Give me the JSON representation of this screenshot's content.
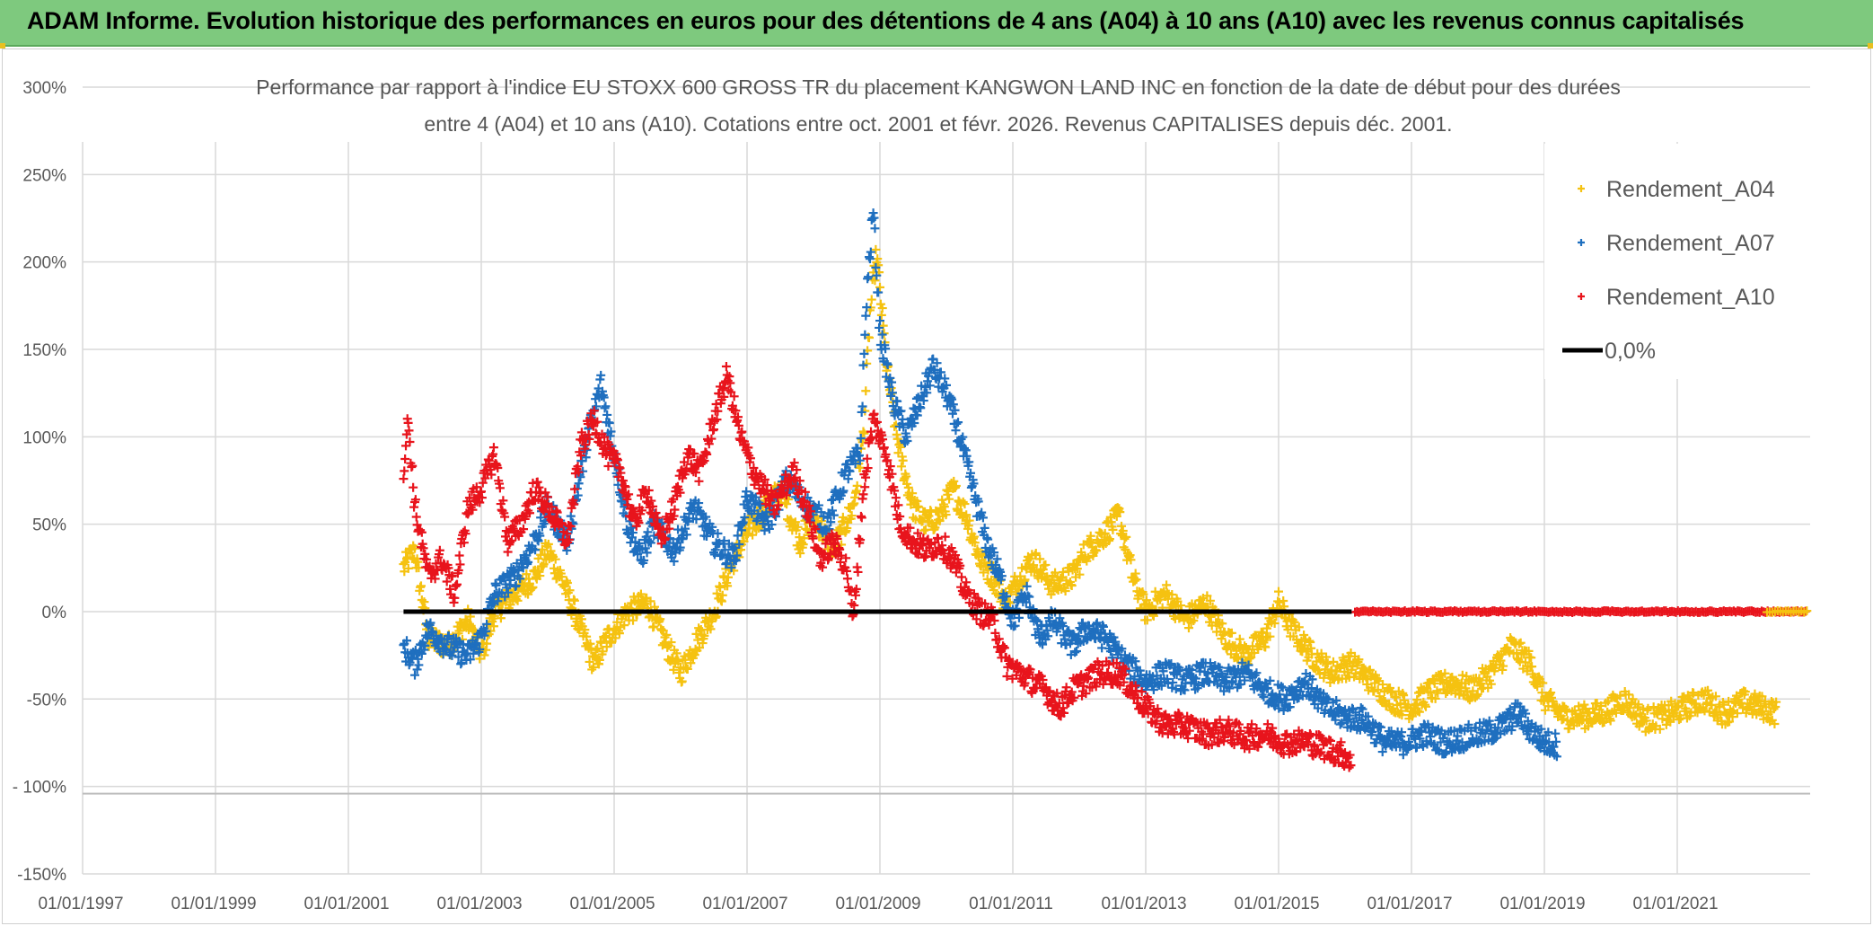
{
  "header": {
    "title": "ADAM Informe. Evolution historique des performances en euros pour des détentions de 4 ans (A04) à 10 ans (A10) avec les revenus connus capitalisés"
  },
  "colors": {
    "A04": "#f5c211",
    "A07": "#1f6fbf",
    "A10": "#e8141c",
    "zero": "#000000",
    "grid": "#d9d9d9"
  },
  "chart_data": {
    "type": "scatter",
    "title_lines": [
      "Performance par rapport à l'indice EU STOXX 600 GROSS TR  du placement KANGWON LAND INC en fonction de la date de début pour des durées",
      "entre 4 (A04) et 10 ans (A10). Cotations entre oct. 2001 et févr. 2026. Revenus CAPITALISES depuis déc. 2001."
    ],
    "x_tick_labels": [
      "01/01/1997",
      "01/01/1999",
      "01/01/2001",
      "01/01/2003",
      "01/01/2005",
      "01/01/2007",
      "01/01/2009",
      "01/01/2011",
      "01/01/2013",
      "01/01/2015",
      "01/01/2017",
      "01/01/2019",
      "01/01/2021"
    ],
    "y_tick_labels": [
      "300%",
      "250%",
      "200%",
      "150%",
      "100%",
      "50%",
      "0%",
      "-50%",
      "- 100%",
      "-150%"
    ],
    "x_range": [
      1997.0,
      2023.0
    ],
    "y_range": [
      -150,
      300
    ],
    "legend_position": "top-right",
    "series": [
      {
        "name": "Rendement_A04",
        "color_key": "A04",
        "points": [
          [
            2001.83,
            25
          ],
          [
            2002.0,
            35
          ],
          [
            2002.2,
            -15
          ],
          [
            2002.5,
            -20
          ],
          [
            2002.8,
            -5
          ],
          [
            2003.0,
            -25
          ],
          [
            2003.2,
            0
          ],
          [
            2003.5,
            10
          ],
          [
            2003.8,
            20
          ],
          [
            2004.0,
            35
          ],
          [
            2004.2,
            20
          ],
          [
            2004.5,
            -10
          ],
          [
            2004.7,
            -30
          ],
          [
            2004.9,
            -15
          ],
          [
            2005.2,
            0
          ],
          [
            2005.5,
            5
          ],
          [
            2005.8,
            -20
          ],
          [
            2006.0,
            -35
          ],
          [
            2006.2,
            -20
          ],
          [
            2006.5,
            0
          ],
          [
            2006.8,
            30
          ],
          [
            2007.0,
            45
          ],
          [
            2007.2,
            55
          ],
          [
            2007.5,
            70
          ],
          [
            2007.8,
            40
          ],
          [
            2008.0,
            55
          ],
          [
            2008.3,
            35
          ],
          [
            2008.6,
            60
          ],
          [
            2008.75,
            100
          ],
          [
            2008.85,
            170
          ],
          [
            2008.95,
            205
          ],
          [
            2009.1,
            140
          ],
          [
            2009.3,
            90
          ],
          [
            2009.5,
            60
          ],
          [
            2009.7,
            50
          ],
          [
            2009.9,
            55
          ],
          [
            2010.1,
            70
          ],
          [
            2010.3,
            55
          ],
          [
            2010.5,
            30
          ],
          [
            2010.7,
            20
          ],
          [
            2010.9,
            5
          ],
          [
            2011.1,
            20
          ],
          [
            2011.3,
            30
          ],
          [
            2011.6,
            15
          ],
          [
            2011.9,
            20
          ],
          [
            2012.1,
            35
          ],
          [
            2012.4,
            45
          ],
          [
            2012.6,
            55
          ],
          [
            2012.8,
            20
          ],
          [
            2013.0,
            0
          ],
          [
            2013.3,
            10
          ],
          [
            2013.6,
            -5
          ],
          [
            2013.9,
            5
          ],
          [
            2014.2,
            -15
          ],
          [
            2014.5,
            -25
          ],
          [
            2014.8,
            -15
          ],
          [
            2015.0,
            5
          ],
          [
            2015.2,
            -10
          ],
          [
            2015.5,
            -25
          ],
          [
            2015.8,
            -35
          ],
          [
            2016.1,
            -30
          ],
          [
            2016.4,
            -40
          ],
          [
            2016.7,
            -50
          ],
          [
            2017.0,
            -55
          ],
          [
            2017.3,
            -45
          ],
          [
            2017.6,
            -40
          ],
          [
            2017.9,
            -45
          ],
          [
            2018.2,
            -35
          ],
          [
            2018.5,
            -20
          ],
          [
            2018.8,
            -30
          ],
          [
            2019.0,
            -50
          ],
          [
            2019.3,
            -60
          ],
          [
            2019.6,
            -60
          ],
          [
            2019.9,
            -58
          ],
          [
            2020.2,
            -50
          ],
          [
            2020.5,
            -62
          ],
          [
            2020.8,
            -60
          ],
          [
            2021.1,
            -55
          ],
          [
            2021.4,
            -50
          ],
          [
            2021.7,
            -58
          ],
          [
            2022.0,
            -52
          ],
          [
            2022.3,
            -55
          ],
          [
            2022.5,
            -58
          ]
        ]
      },
      {
        "name": "Rendement_A07",
        "color_key": "A07",
        "points": [
          [
            2001.83,
            -20
          ],
          [
            2002.0,
            -30
          ],
          [
            2002.2,
            -10
          ],
          [
            2002.5,
            -20
          ],
          [
            2002.8,
            -25
          ],
          [
            2003.0,
            -15
          ],
          [
            2003.2,
            10
          ],
          [
            2003.5,
            20
          ],
          [
            2003.8,
            40
          ],
          [
            2004.0,
            60
          ],
          [
            2004.3,
            40
          ],
          [
            2004.6,
            100
          ],
          [
            2004.8,
            130
          ],
          [
            2005.0,
            90
          ],
          [
            2005.2,
            50
          ],
          [
            2005.4,
            30
          ],
          [
            2005.6,
            50
          ],
          [
            2005.9,
            35
          ],
          [
            2006.2,
            60
          ],
          [
            2006.5,
            40
          ],
          [
            2006.8,
            30
          ],
          [
            2007.0,
            65
          ],
          [
            2007.3,
            50
          ],
          [
            2007.6,
            75
          ],
          [
            2007.9,
            60
          ],
          [
            2008.2,
            50
          ],
          [
            2008.5,
            80
          ],
          [
            2008.7,
            90
          ],
          [
            2008.8,
            180
          ],
          [
            2008.9,
            230
          ],
          [
            2009.0,
            160
          ],
          [
            2009.2,
            120
          ],
          [
            2009.4,
            100
          ],
          [
            2009.6,
            120
          ],
          [
            2009.8,
            140
          ],
          [
            2010.0,
            125
          ],
          [
            2010.2,
            100
          ],
          [
            2010.4,
            70
          ],
          [
            2010.6,
            40
          ],
          [
            2010.8,
            20
          ],
          [
            2011.0,
            -5
          ],
          [
            2011.2,
            10
          ],
          [
            2011.4,
            -15
          ],
          [
            2011.6,
            -5
          ],
          [
            2011.9,
            -20
          ],
          [
            2012.1,
            -10
          ],
          [
            2012.4,
            -15
          ],
          [
            2012.7,
            -30
          ],
          [
            2013.0,
            -40
          ],
          [
            2013.3,
            -35
          ],
          [
            2013.6,
            -40
          ],
          [
            2013.9,
            -35
          ],
          [
            2014.2,
            -40
          ],
          [
            2014.5,
            -35
          ],
          [
            2014.8,
            -45
          ],
          [
            2015.1,
            -50
          ],
          [
            2015.4,
            -40
          ],
          [
            2015.7,
            -55
          ],
          [
            2016.0,
            -60
          ],
          [
            2016.3,
            -62
          ],
          [
            2016.6,
            -75
          ],
          [
            2016.9,
            -75
          ],
          [
            2017.2,
            -70
          ],
          [
            2017.5,
            -75
          ],
          [
            2017.8,
            -72
          ],
          [
            2018.1,
            -70
          ],
          [
            2018.4,
            -65
          ],
          [
            2018.6,
            -58
          ],
          [
            2018.8,
            -68
          ],
          [
            2019.0,
            -75
          ],
          [
            2019.2,
            -76
          ]
        ]
      },
      {
        "name": "Rendement_A10",
        "color_key": "A10",
        "points": [
          [
            2001.83,
            80
          ],
          [
            2001.9,
            110
          ],
          [
            2002.0,
            60
          ],
          [
            2002.2,
            20
          ],
          [
            2002.4,
            30
          ],
          [
            2002.6,
            10
          ],
          [
            2002.8,
            60
          ],
          [
            2003.0,
            70
          ],
          [
            2003.2,
            90
          ],
          [
            2003.4,
            40
          ],
          [
            2003.6,
            50
          ],
          [
            2003.8,
            70
          ],
          [
            2004.0,
            60
          ],
          [
            2004.3,
            40
          ],
          [
            2004.5,
            95
          ],
          [
            2004.7,
            110
          ],
          [
            2004.9,
            90
          ],
          [
            2005.1,
            80
          ],
          [
            2005.3,
            50
          ],
          [
            2005.5,
            70
          ],
          [
            2005.7,
            40
          ],
          [
            2005.9,
            60
          ],
          [
            2006.1,
            90
          ],
          [
            2006.3,
            80
          ],
          [
            2006.5,
            110
          ],
          [
            2006.7,
            135
          ],
          [
            2006.9,
            100
          ],
          [
            2007.1,
            80
          ],
          [
            2007.4,
            60
          ],
          [
            2007.7,
            80
          ],
          [
            2007.9,
            60
          ],
          [
            2008.1,
            30
          ],
          [
            2008.3,
            40
          ],
          [
            2008.5,
            25
          ],
          [
            2008.6,
            -5
          ],
          [
            2008.75,
            70
          ],
          [
            2008.9,
            110
          ],
          [
            2009.1,
            90
          ],
          [
            2009.3,
            50
          ],
          [
            2009.5,
            40
          ],
          [
            2009.7,
            35
          ],
          [
            2009.9,
            40
          ],
          [
            2010.1,
            30
          ],
          [
            2010.3,
            10
          ],
          [
            2010.5,
            0
          ],
          [
            2010.7,
            -5
          ],
          [
            2010.9,
            -30
          ],
          [
            2011.1,
            -35
          ],
          [
            2011.3,
            -40
          ],
          [
            2011.5,
            -45
          ],
          [
            2011.7,
            -55
          ],
          [
            2011.9,
            -45
          ],
          [
            2012.1,
            -40
          ],
          [
            2012.3,
            -35
          ],
          [
            2012.6,
            -35
          ],
          [
            2012.8,
            -45
          ],
          [
            2013.0,
            -55
          ],
          [
            2013.3,
            -65
          ],
          [
            2013.6,
            -65
          ],
          [
            2013.9,
            -70
          ],
          [
            2014.2,
            -68
          ],
          [
            2014.5,
            -72
          ],
          [
            2014.8,
            -70
          ],
          [
            2015.1,
            -75
          ],
          [
            2015.4,
            -74
          ],
          [
            2015.7,
            -78
          ],
          [
            2016.0,
            -82
          ],
          [
            2016.1,
            -84
          ]
        ]
      },
      {
        "name": "Rendement_A10 (0%)",
        "color_key": "A10",
        "range": [
          2016.15,
          2022.95
        ],
        "value": 0
      },
      {
        "name": "0,0%",
        "color_key": "zero",
        "range": [
          2001.83,
          2016.1
        ],
        "value": 0
      }
    ],
    "legend": [
      "Rendement_A04",
      "Rendement_A07",
      "Rendement_A10",
      "0,0%"
    ]
  }
}
